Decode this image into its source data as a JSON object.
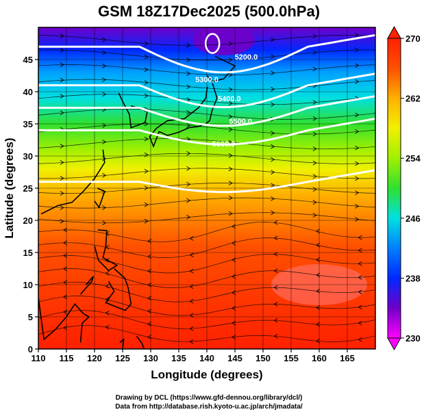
{
  "title": "GSM 18Z17Dec2025 (500.0hPa)",
  "x_axis": {
    "label": "Longitude (degrees)",
    "min": 110,
    "max": 170,
    "ticks": [
      "110",
      "115",
      "120",
      "125",
      "130",
      "135",
      "140",
      "145",
      "150",
      "155",
      "160",
      "165"
    ]
  },
  "y_axis": {
    "label": "Latitude  (degrees)",
    "min": 0,
    "max": 50,
    "ticks": [
      "0",
      "5",
      "10",
      "15",
      "20",
      "25",
      "30",
      "35",
      "40",
      "45"
    ]
  },
  "colorbar": {
    "min": 230,
    "max": 270,
    "labels": [
      "270",
      "262",
      "254",
      "246",
      "238",
      "230"
    ],
    "colors": [
      "#ff00ff",
      "#7000c8",
      "#0028ff",
      "#00a0ff",
      "#00e0e0",
      "#30e030",
      "#a0f000",
      "#f0f000",
      "#ffb000",
      "#ff5000",
      "#ff2000"
    ]
  },
  "contours": {
    "color": "#ffffff",
    "labels": [
      "5200.0",
      "5300.0",
      "5400.0",
      "5500.0",
      "5600.0"
    ]
  },
  "credits": {
    "line1": "Drawing by DCL (https://www.gfd-dennou.org/library/dcl/)",
    "line2": "Data from http://database.rish.kyoto-u.ac.jp/arch/jmadata/"
  }
}
